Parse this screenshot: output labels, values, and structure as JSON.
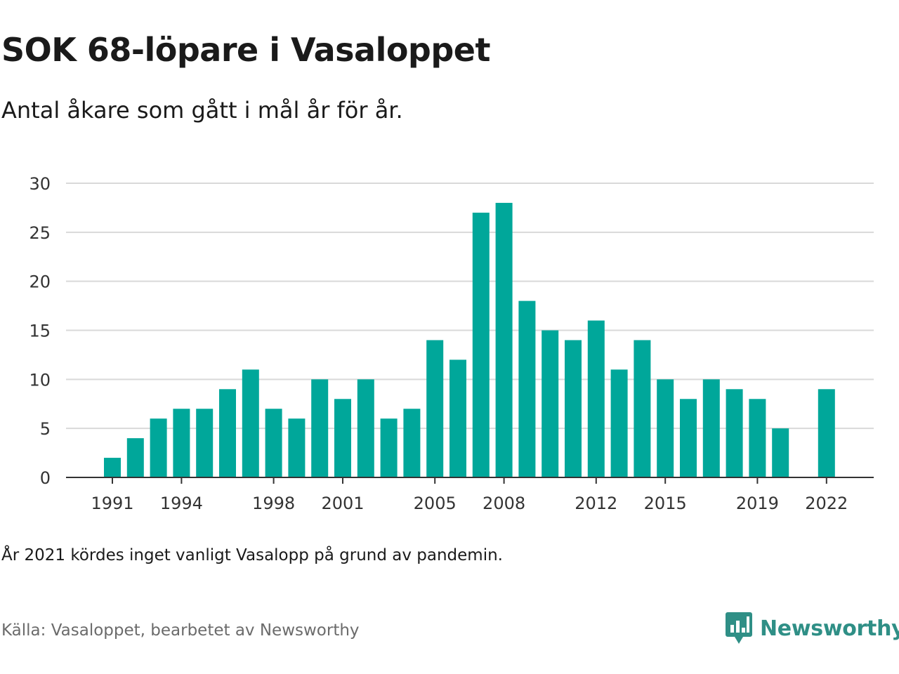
{
  "header": {
    "title": "SOK 68-löpare i Vasaloppet",
    "subtitle": "Antal åkare som gått i mål år för år."
  },
  "footer": {
    "note": "År 2021 kördes inget vanligt Vasalopp på grund av pandemin.",
    "source": "Källa: Vasaloppet, bearbetet av Newsworthy",
    "logo_text": "Newsworthy",
    "logo_icon": "newsworthy-logo-icon"
  },
  "colors": {
    "bar": "#00a79a",
    "grid": "#d9d9d9",
    "axis": "#333333",
    "logo": "#2f8f86"
  },
  "chart_data": {
    "type": "bar",
    "title": "SOK 68-löpare i Vasaloppet",
    "subtitle": "Antal åkare som gått i mål år för år.",
    "categories": [
      1991,
      1992,
      1993,
      1994,
      1995,
      1996,
      1997,
      1998,
      1999,
      2000,
      2001,
      2002,
      2003,
      2004,
      2005,
      2006,
      2007,
      2008,
      2009,
      2010,
      2011,
      2012,
      2013,
      2014,
      2015,
      2016,
      2017,
      2018,
      2019,
      2020,
      2021,
      2022
    ],
    "values": [
      2,
      4,
      6,
      7,
      7,
      9,
      11,
      7,
      6,
      10,
      8,
      10,
      6,
      7,
      14,
      12,
      27,
      28,
      18,
      15,
      14,
      16,
      11,
      14,
      10,
      8,
      10,
      9,
      8,
      5,
      null,
      9
    ],
    "x_tick_labels": [
      1991,
      1994,
      1998,
      2001,
      2005,
      2008,
      2012,
      2015,
      2019,
      2022
    ],
    "y_ticks": [
      0,
      5,
      10,
      15,
      20,
      25,
      30
    ],
    "ylim": [
      0,
      30
    ],
    "grid": true,
    "legend": "none"
  }
}
